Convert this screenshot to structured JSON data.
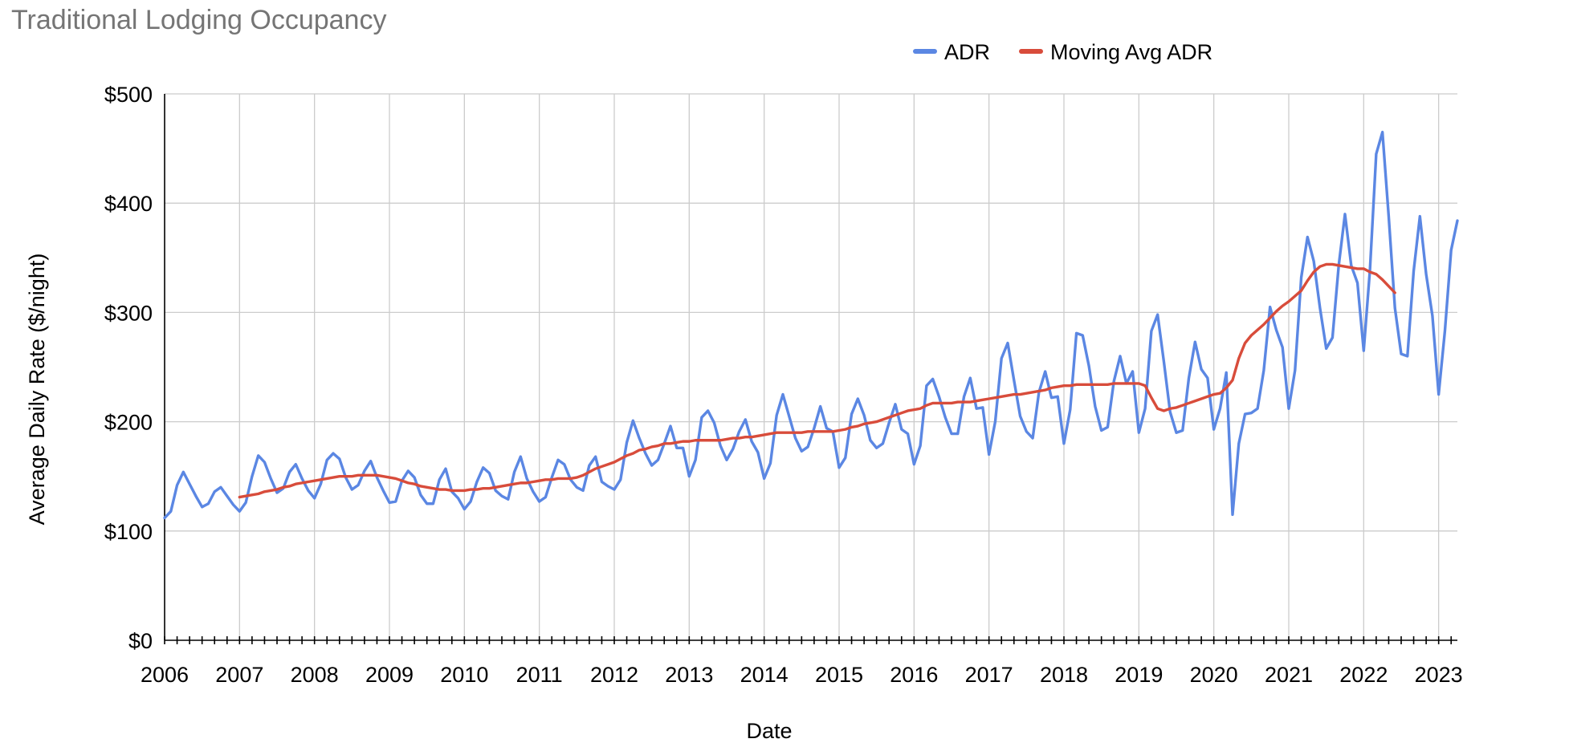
{
  "chart_data": {
    "type": "line",
    "title": "Traditional Lodging Occupancy",
    "xlabel": "Date",
    "ylabel": "Average Daily Rate ($/night)",
    "xlim": [
      2006.0,
      2023.25
    ],
    "ylim": [
      0,
      500
    ],
    "x_ticks": [
      "2006",
      "2007",
      "2008",
      "2009",
      "2010",
      "2011",
      "2012",
      "2013",
      "2014",
      "2015",
      "2016",
      "2017",
      "2018",
      "2019",
      "2020",
      "2021",
      "2022",
      "2023"
    ],
    "y_ticks": [
      "$0",
      "$100",
      "$200",
      "$300",
      "$400",
      "$500"
    ],
    "grid": true,
    "legend_position": "top-center",
    "colors": {
      "adr": "#5b87e3",
      "moving_avg": "#d84c3b",
      "grid": "#cccccc",
      "axis": "#000000"
    },
    "series": [
      {
        "name": "ADR",
        "start": "2006-01",
        "frequency": "monthly",
        "values": [
          112,
          118,
          142,
          154,
          143,
          132,
          122,
          125,
          136,
          140,
          132,
          124,
          118,
          126,
          150,
          169,
          163,
          148,
          135,
          139,
          154,
          161,
          148,
          137,
          130,
          143,
          165,
          171,
          166,
          149,
          138,
          142,
          155,
          164,
          149,
          137,
          126,
          127,
          146,
          155,
          149,
          133,
          125,
          125,
          147,
          157,
          136,
          130,
          120,
          127,
          145,
          158,
          153,
          137,
          132,
          129,
          154,
          168,
          148,
          136,
          127,
          131,
          149,
          165,
          161,
          147,
          140,
          137,
          160,
          168,
          145,
          141,
          138,
          147,
          181,
          201,
          185,
          171,
          160,
          165,
          180,
          196,
          176,
          176,
          150,
          165,
          204,
          210,
          199,
          178,
          165,
          175,
          191,
          202,
          182,
          172,
          148,
          162,
          206,
          225,
          205,
          185,
          173,
          177,
          194,
          214,
          194,
          191,
          158,
          167,
          207,
          221,
          206,
          183,
          176,
          180,
          199,
          216,
          193,
          189,
          161,
          178,
          233,
          239,
          223,
          204,
          189,
          189,
          223,
          240,
          212,
          213,
          170,
          200,
          258,
          272,
          238,
          205,
          191,
          185,
          227,
          246,
          222,
          223,
          180,
          211,
          281,
          279,
          251,
          214,
          192,
          195,
          237,
          260,
          235,
          246,
          190,
          212,
          283,
          298,
          255,
          209,
          190,
          192,
          240,
          273,
          248,
          240,
          193,
          212,
          245,
          115,
          180,
          207,
          208,
          212,
          247,
          305,
          284,
          268,
          212,
          247,
          332,
          369,
          347,
          304,
          267,
          277,
          343,
          390,
          343,
          327,
          265,
          339,
          445,
          465,
          388,
          304,
          262,
          260,
          338,
          388,
          335,
          297,
          225,
          283,
          357,
          384
        ]
      },
      {
        "name": "Moving Avg ADR",
        "start": "2007-01",
        "frequency": "monthly",
        "values": [
          131,
          132,
          133,
          134,
          136,
          137,
          138,
          140,
          141,
          143,
          144,
          145,
          146,
          147,
          148,
          149,
          150,
          150,
          150,
          151,
          151,
          151,
          151,
          150,
          149,
          148,
          146,
          144,
          143,
          141,
          140,
          139,
          138,
          138,
          137,
          137,
          137,
          138,
          138,
          139,
          139,
          140,
          141,
          142,
          143,
          144,
          144,
          145,
          146,
          147,
          147,
          148,
          148,
          148,
          149,
          151,
          154,
          157,
          159,
          161,
          163,
          166,
          169,
          171,
          174,
          175,
          177,
          178,
          180,
          180,
          181,
          182,
          182,
          183,
          183,
          183,
          183,
          183,
          184,
          185,
          185,
          186,
          186,
          187,
          188,
          189,
          190,
          190,
          190,
          190,
          190,
          191,
          191,
          191,
          191,
          191,
          192,
          193,
          195,
          196,
          198,
          199,
          200,
          202,
          204,
          206,
          208,
          210,
          211,
          212,
          215,
          217,
          217,
          217,
          217,
          218,
          218,
          218,
          219,
          220,
          221,
          222,
          223,
          224,
          225,
          225,
          226,
          227,
          228,
          229,
          231,
          232,
          233,
          233,
          234,
          234,
          234,
          234,
          234,
          234,
          235,
          235,
          235,
          235,
          235,
          233,
          222,
          212,
          210,
          212,
          213,
          215,
          217,
          219,
          221,
          223,
          225,
          226,
          231,
          238,
          258,
          272,
          279,
          284,
          289,
          295,
          301,
          306,
          310,
          315,
          320,
          329,
          337,
          342,
          344,
          344,
          343,
          342,
          341,
          340,
          340,
          337,
          335,
          330,
          324,
          318
        ]
      }
    ]
  }
}
